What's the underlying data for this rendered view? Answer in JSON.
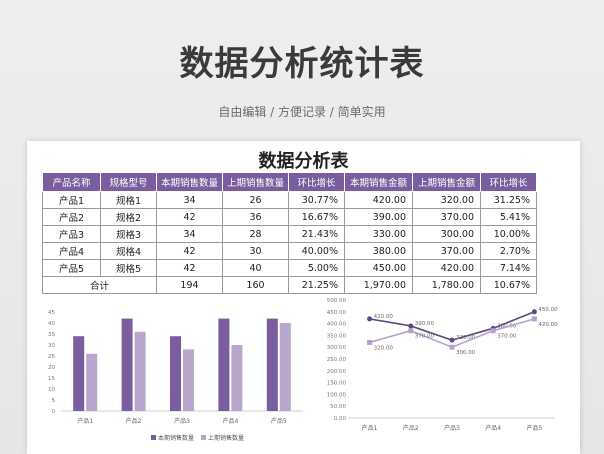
{
  "banner": {
    "title": "数据分析统计表",
    "subtitle": "自由编辑 / 方便记录 / 简单实用"
  },
  "sheet": {
    "title": "数据分析表",
    "headers": [
      "产品名称",
      "规格型号",
      "本期销售数量",
      "上期销售数量",
      "环比增长",
      "本期销售金额",
      "上期销售金额",
      "环比增长"
    ],
    "rows": [
      [
        "产品1",
        "规格1",
        "34",
        "26",
        "30.77%",
        "420.00",
        "320.00",
        "31.25%"
      ],
      [
        "产品2",
        "规格2",
        "42",
        "36",
        "16.67%",
        "390.00",
        "370.00",
        "5.41%"
      ],
      [
        "产品3",
        "规格3",
        "34",
        "28",
        "21.43%",
        "330.00",
        "300.00",
        "10.00%"
      ],
      [
        "产品4",
        "规格4",
        "42",
        "30",
        "40.00%",
        "380.00",
        "370.00",
        "2.70%"
      ],
      [
        "产品5",
        "规格5",
        "42",
        "40",
        "5.00%",
        "450.00",
        "420.00",
        "7.14%"
      ]
    ],
    "total_row": [
      "合计",
      "",
      "194",
      "160",
      "21.25%",
      "1,970.00",
      "1,780.00",
      "10.67%"
    ]
  },
  "colors": {
    "header_bg": "#7a5d9e",
    "series_dark": "#7a5d9e",
    "series_light": "#b8a6cd",
    "line_dark": "#5b4a7a",
    "line_light": "#b49fce"
  },
  "chart_data": [
    {
      "type": "bar",
      "categories": [
        "产品1",
        "产品2",
        "产品3",
        "产品4",
        "产品5"
      ],
      "series": [
        {
          "name": "本期销售数量",
          "values": [
            34,
            42,
            34,
            42,
            42
          ]
        },
        {
          "name": "上期销售数量",
          "values": [
            26,
            36,
            28,
            30,
            40
          ]
        }
      ],
      "ylim": [
        0,
        45
      ],
      "yticks": [
        0,
        5,
        10,
        15,
        20,
        25,
        30,
        35,
        40,
        45
      ],
      "legend": "bottom",
      "grid": false
    },
    {
      "type": "line",
      "categories": [
        "产品1",
        "产品2",
        "产品3",
        "产品4",
        "产品5"
      ],
      "series": [
        {
          "values": [
            420,
            390,
            330,
            380,
            450
          ],
          "labels": [
            "420.00",
            "390.00",
            "330.00",
            "380.00",
            "450.00"
          ]
        },
        {
          "values": [
            320,
            370,
            300,
            370,
            420
          ],
          "labels": [
            "320.00",
            "370.00",
            "300.00",
            "370.00",
            "420.00"
          ]
        }
      ],
      "ylim": [
        0,
        500
      ],
      "yticks": [
        "0.00",
        "50.00",
        "100.00",
        "150.00",
        "200.00",
        "250.00",
        "300.00",
        "350.00",
        "400.00",
        "450.00",
        "500.00"
      ],
      "grid": false
    }
  ]
}
